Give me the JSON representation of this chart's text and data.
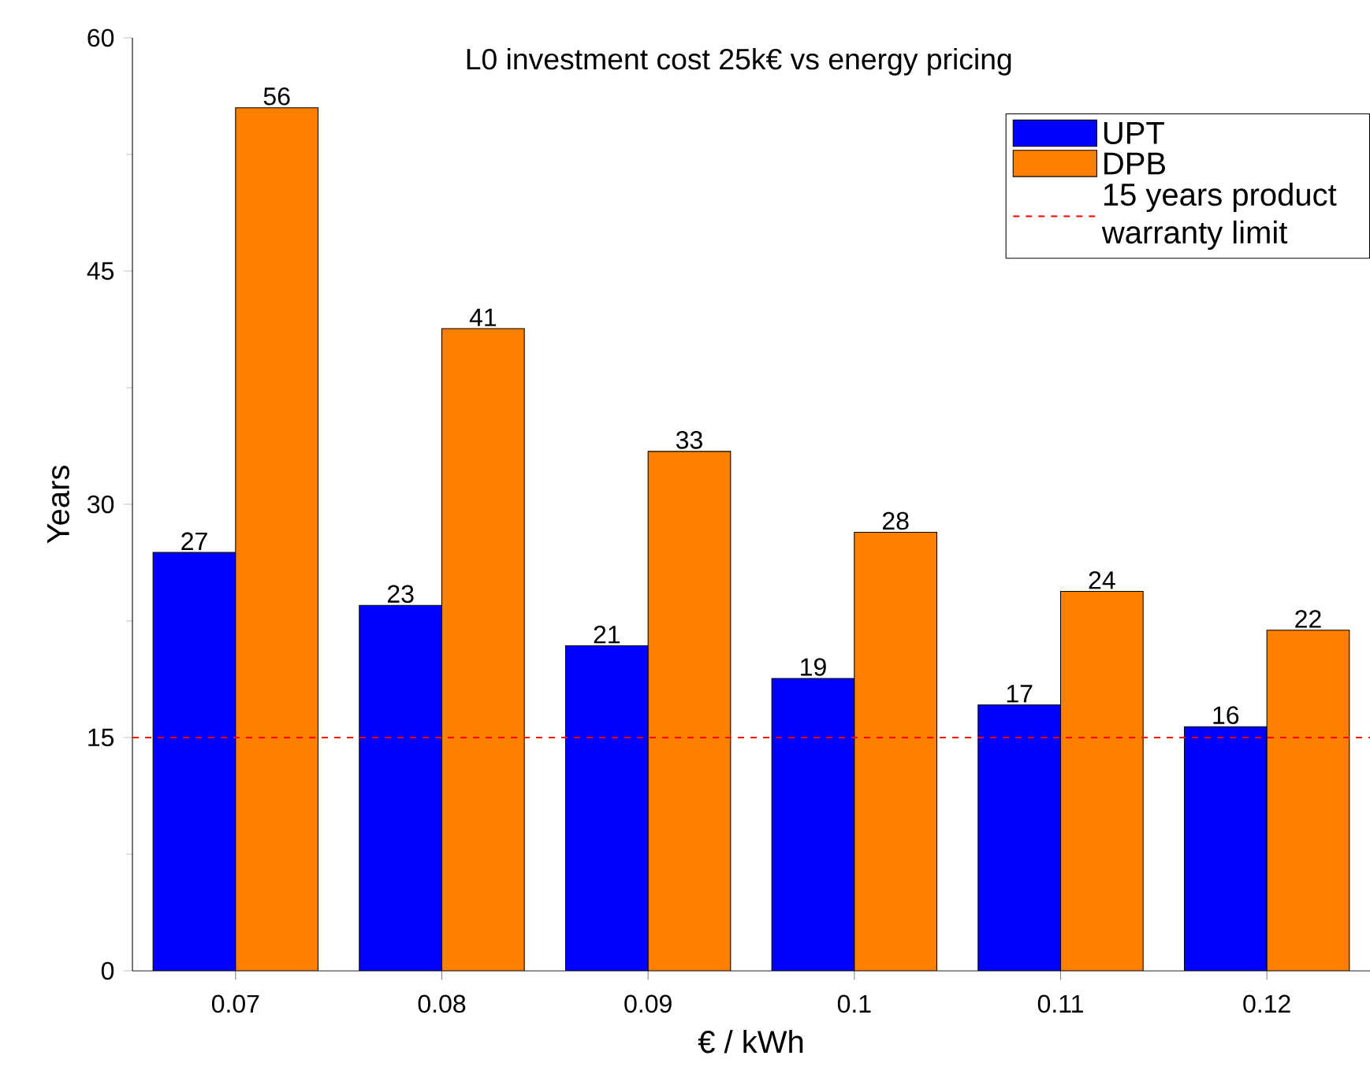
{
  "chart_data": {
    "type": "bar",
    "title": "L0 investment cost 25k€ vs energy pricing",
    "xlabel": "€ / kWh",
    "ylabel": "Years",
    "categories": [
      "0.07",
      "0.08",
      "0.09",
      "0.1",
      "0.11",
      "0.12"
    ],
    "series": [
      {
        "name": "UPT",
        "color": "#0000ff",
        "values": [
          26.9,
          23.5,
          20.9,
          18.8,
          17.1,
          15.7
        ],
        "value_labels": [
          "27",
          "23",
          "21",
          "19",
          "17",
          "16"
        ]
      },
      {
        "name": "DPB",
        "color": "#ff8000",
        "values": [
          55.5,
          41.3,
          33.4,
          28.2,
          24.4,
          21.9
        ],
        "value_labels": [
          "56",
          "41",
          "33",
          "28",
          "24",
          "22"
        ]
      }
    ],
    "ylim": [
      0,
      60
    ],
    "yticks": [
      0,
      15,
      30,
      45,
      60
    ],
    "ref_lines": [
      {
        "axis": "y",
        "value": 15,
        "label": "15 years product warranty limit",
        "color": "#ff0000",
        "line_style": "dashed"
      }
    ],
    "legend": "top right",
    "grid": false
  }
}
